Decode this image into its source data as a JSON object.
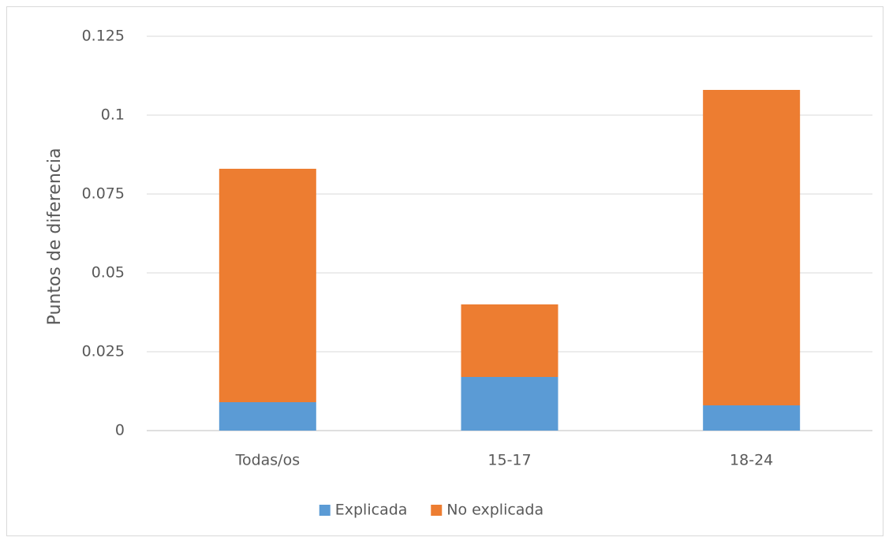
{
  "chart_data": {
    "type": "stacked_bar",
    "y_label": "Puntos de diferencia",
    "categories": [
      "Todas/os",
      "15-17",
      "18-24"
    ],
    "series": [
      {
        "name": "Explicada",
        "color": "#5b9bd5",
        "values": [
          0.009,
          0.017,
          0.008
        ]
      },
      {
        "name": "No explicada",
        "color": "#ed7d31",
        "values": [
          0.074,
          0.023,
          0.1
        ]
      }
    ],
    "ylim": [
      0,
      0.125
    ],
    "yticks": [
      0,
      0.025,
      0.05,
      0.075,
      0.1,
      0.125
    ],
    "grid": true,
    "legend": "bottom"
  }
}
